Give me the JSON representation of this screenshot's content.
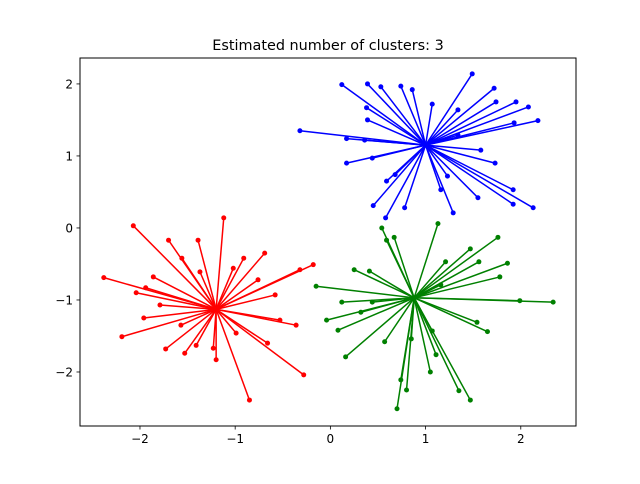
{
  "chart_data": {
    "type": "scatter",
    "title": "Estimated number of clusters: 3",
    "xlabel": "",
    "ylabel": "",
    "xlim": [
      -2.63,
      2.58
    ],
    "ylim": [
      -2.75,
      2.36
    ],
    "xticks": [
      -2,
      -1,
      0,
      1,
      2
    ],
    "yticks": [
      -2,
      -1,
      0,
      1,
      2
    ],
    "grid": false,
    "style": "each point joined by a line to its cluster center",
    "clusters": [
      {
        "color": "#0000ff",
        "center": [
          1.0,
          1.15
        ],
        "points": [
          [
            0.12,
            1.99
          ],
          [
            1.49,
            2.14
          ],
          [
            1.72,
            1.94
          ],
          [
            1.95,
            1.75
          ],
          [
            2.08,
            1.68
          ],
          [
            2.18,
            1.49
          ],
          [
            -0.32,
            1.35
          ],
          [
            0.17,
            1.24
          ],
          [
            0.17,
            0.9
          ],
          [
            0.45,
            0.31
          ],
          [
            0.58,
            0.14
          ],
          [
            0.78,
            0.28
          ],
          [
            1.29,
            0.21
          ],
          [
            1.55,
            0.42
          ],
          [
            1.92,
            0.53
          ],
          [
            1.92,
            0.33
          ],
          [
            2.13,
            0.28
          ],
          [
            1.73,
            0.9
          ],
          [
            0.39,
            2.0
          ],
          [
            0.53,
            1.96
          ],
          [
            0.74,
            1.97
          ],
          [
            0.86,
            1.92
          ],
          [
            1.07,
            1.72
          ],
          [
            1.74,
            1.75
          ],
          [
            1.93,
            1.46
          ],
          [
            0.59,
            0.65
          ],
          [
            1.16,
            0.53
          ],
          [
            0.36,
            1.22
          ],
          [
            0.39,
            1.5
          ],
          [
            1.34,
            1.29
          ],
          [
            1.58,
            1.08
          ],
          [
            0.68,
            0.74
          ],
          [
            1.23,
            0.72
          ],
          [
            0.44,
            0.97
          ],
          [
            1.34,
            1.64
          ],
          [
            0.38,
            1.67
          ]
        ]
      },
      {
        "color": "#ff0000",
        "center": [
          -1.2,
          -1.13
        ],
        "points": [
          [
            -2.07,
            0.03
          ],
          [
            -1.12,
            0.14
          ],
          [
            -2.38,
            -0.69
          ],
          [
            -2.19,
            -1.51
          ],
          [
            -1.7,
            -0.17
          ],
          [
            -1.39,
            -0.17
          ],
          [
            -0.85,
            -2.39
          ],
          [
            -0.28,
            -2.04
          ],
          [
            -0.66,
            -1.6
          ],
          [
            -0.18,
            -0.51
          ],
          [
            -0.32,
            -0.58
          ],
          [
            -0.69,
            -0.35
          ],
          [
            -0.91,
            -0.42
          ],
          [
            -2.04,
            -0.9
          ],
          [
            -1.96,
            -1.25
          ],
          [
            -1.73,
            -1.68
          ],
          [
            -1.53,
            -1.74
          ],
          [
            -1.2,
            -1.83
          ],
          [
            -0.36,
            -1.35
          ],
          [
            -0.53,
            -1.28
          ],
          [
            -1.86,
            -0.68
          ],
          [
            -1.56,
            -0.42
          ],
          [
            -0.76,
            -0.72
          ],
          [
            -1.57,
            -1.35
          ],
          [
            -0.99,
            -1.46
          ],
          [
            -1.23,
            -1.67
          ],
          [
            -1.94,
            -0.83
          ],
          [
            -0.58,
            -0.93
          ],
          [
            -1.37,
            -0.61
          ],
          [
            -1.02,
            -0.56
          ],
          [
            -1.79,
            -1.07
          ],
          [
            -1.41,
            -1.63
          ]
        ]
      },
      {
        "color": "#008000",
        "center": [
          0.88,
          -0.97
        ],
        "points": [
          [
            0.54,
            0.0
          ],
          [
            0.8,
            -2.25
          ],
          [
            1.47,
            -2.39
          ],
          [
            2.34,
            -1.03
          ],
          [
            1.99,
            -1.01
          ],
          [
            1.86,
            -0.49
          ],
          [
            1.76,
            -0.13
          ],
          [
            1.47,
            -0.29
          ],
          [
            1.13,
            0.06
          ],
          [
            0.16,
            -1.79
          ],
          [
            -0.04,
            -1.28
          ],
          [
            -0.15,
            -0.81
          ],
          [
            0.25,
            -0.58
          ],
          [
            0.41,
            -0.6
          ],
          [
            0.59,
            -0.17
          ],
          [
            0.67,
            -0.13
          ],
          [
            0.57,
            -1.58
          ],
          [
            0.85,
            -1.54
          ],
          [
            0.74,
            -2.11
          ],
          [
            1.11,
            -1.76
          ],
          [
            1.35,
            -2.26
          ],
          [
            1.65,
            -1.44
          ],
          [
            1.54,
            -1.31
          ],
          [
            1.07,
            -1.43
          ],
          [
            0.08,
            -1.42
          ],
          [
            0.32,
            -1.17
          ],
          [
            1.56,
            -0.47
          ],
          [
            1.78,
            -0.68
          ],
          [
            1.21,
            -0.47
          ],
          [
            1.16,
            -0.79
          ],
          [
            0.44,
            -1.03
          ],
          [
            0.12,
            -1.03
          ],
          [
            1.05,
            -2.0
          ],
          [
            0.7,
            -2.51
          ]
        ]
      }
    ]
  }
}
